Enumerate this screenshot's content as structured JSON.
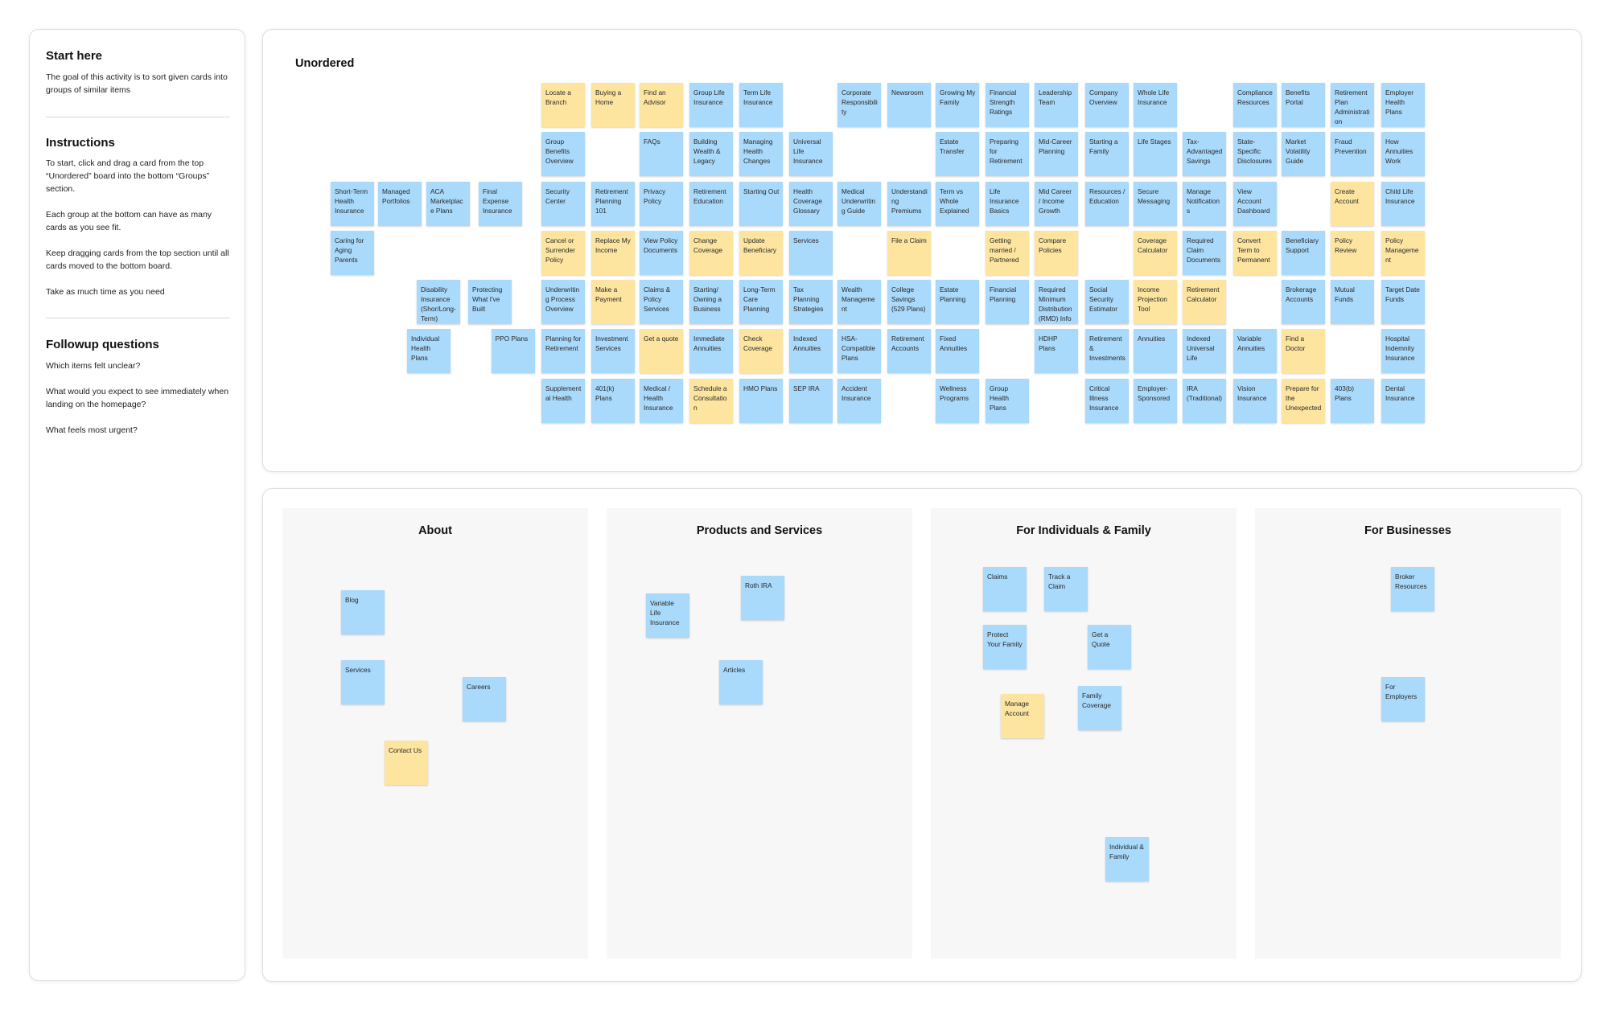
{
  "sidebar": {
    "start_title": "Start here",
    "start_text": "The goal of this activity is to sort given cards into groups of similar items",
    "instructions_title": "Instructions",
    "instructions": [
      "To start, click and drag a card from the top “Unordered” board into the bottom “Groups” section.",
      "Each group at the bottom can have as many cards as you see fit.",
      "Keep dragging cards from the top section until all cards moved to the bottom board.",
      "Take as much time as you need"
    ],
    "followup_title": "Followup questions",
    "followup": [
      "Which items felt unclear?",
      "What would you expect to see immediately when landing on the homepage?",
      "What feels most urgent?"
    ]
  },
  "unordered": {
    "title": "Unordered",
    "cards": [
      {
        "text": "Short-Term Health Insurance",
        "color": "blue"
      },
      {
        "text": "Managed Portfolios",
        "color": "blue"
      },
      {
        "text": "ACA Marketplace Plans",
        "color": "blue"
      },
      {
        "text": "Final Expense Insurance",
        "color": "blue"
      },
      {
        "text": "Caring for Aging Parents",
        "color": "blue"
      },
      {
        "text": "Disability Insurance (Shor/Long-Term)",
        "color": "blue"
      },
      {
        "text": "Protecting What I've Built",
        "color": "blue"
      },
      {
        "text": "Individual Health Plans",
        "color": "blue"
      },
      {
        "text": "PPO Plans",
        "color": "blue"
      },
      {
        "text": "Locate a Branch",
        "color": "yellow"
      },
      {
        "text": "Buying a Home",
        "color": "yellow"
      },
      {
        "text": "Find an Advisor",
        "color": "yellow"
      },
      {
        "text": "Group Life Insurance",
        "color": "blue"
      },
      {
        "text": "Term Life Insurance",
        "color": "blue"
      },
      {
        "text": "Corporate Responsibility",
        "color": "blue"
      },
      {
        "text": "Newsroom",
        "color": "blue"
      },
      {
        "text": "Growing My Family",
        "color": "blue"
      },
      {
        "text": "Financial Strength Ratings",
        "color": "blue"
      },
      {
        "text": "Leadership Team",
        "color": "blue"
      },
      {
        "text": "Company Overview",
        "color": "blue"
      },
      {
        "text": "Whole Life Insurance",
        "color": "blue"
      },
      {
        "text": "Compliance Resources",
        "color": "blue"
      },
      {
        "text": "Benefits Portal",
        "color": "blue"
      },
      {
        "text": "Retirement Plan Administration",
        "color": "blue"
      },
      {
        "text": "Employer Health Plans",
        "color": "blue"
      },
      {
        "text": "Group Benefits Overview",
        "color": "blue"
      },
      {
        "text": "FAQs",
        "color": "blue"
      },
      {
        "text": "Building Wealth & Legacy",
        "color": "blue"
      },
      {
        "text": "Managing Health Changes",
        "color": "blue"
      },
      {
        "text": "Universal Life Insurance",
        "color": "blue"
      },
      {
        "text": "Estate Transfer",
        "color": "blue"
      },
      {
        "text": "Preparing for Retirement",
        "color": "blue"
      },
      {
        "text": "Mid-Career Planning",
        "color": "blue"
      },
      {
        "text": "Starting a Family",
        "color": "blue"
      },
      {
        "text": "Life Stages",
        "color": "blue"
      },
      {
        "text": "Tax-Advantaged Savings",
        "color": "blue"
      },
      {
        "text": "State-Specific Disclosures",
        "color": "blue"
      },
      {
        "text": "Market Volatility Guide",
        "color": "blue"
      },
      {
        "text": "Fraud Prevention",
        "color": "blue"
      },
      {
        "text": "How Annuities Work",
        "color": "blue"
      },
      {
        "text": "Security Center",
        "color": "blue"
      },
      {
        "text": "Retirement Planning 101",
        "color": "blue"
      },
      {
        "text": "Privacy Policy",
        "color": "blue"
      },
      {
        "text": "Retirement Education",
        "color": "blue"
      },
      {
        "text": "Starting Out",
        "color": "blue"
      },
      {
        "text": "Health Coverage Glossary",
        "color": "blue"
      },
      {
        "text": "Medical Underwriting Guide",
        "color": "blue"
      },
      {
        "text": "Understanding Premiums",
        "color": "blue"
      },
      {
        "text": "Term vs Whole Explained",
        "color": "blue"
      },
      {
        "text": "Life Insurance Basics",
        "color": "blue"
      },
      {
        "text": "Mid Career / Income Growth",
        "color": "blue"
      },
      {
        "text": "Resources / Education",
        "color": "blue"
      },
      {
        "text": "Secure Messaging",
        "color": "blue"
      },
      {
        "text": "Manage Notifications",
        "color": "blue"
      },
      {
        "text": "View Account Dashboard",
        "color": "blue"
      },
      {
        "text": "Create Account",
        "color": "yellow"
      },
      {
        "text": "Child Life Insurance",
        "color": "blue"
      },
      {
        "text": "Cancel or Surrender Policy",
        "color": "yellow"
      },
      {
        "text": "Replace My Income",
        "color": "yellow"
      },
      {
        "text": "View Policy Documents",
        "color": "blue"
      },
      {
        "text": "Change Coverage",
        "color": "yellow"
      },
      {
        "text": "Update Beneficiary",
        "color": "yellow"
      },
      {
        "text": "Services",
        "color": "blue"
      },
      {
        "text": "File a Claim",
        "color": "yellow"
      },
      {
        "text": "Getting married / Partnered",
        "color": "yellow"
      },
      {
        "text": "Compare Policies",
        "color": "yellow"
      },
      {
        "text": "Coverage Calculator",
        "color": "yellow"
      },
      {
        "text": "Required Claim Documents",
        "color": "blue"
      },
      {
        "text": "Convert Term to Permanent",
        "color": "yellow"
      },
      {
        "text": "Beneficiary Support",
        "color": "blue"
      },
      {
        "text": "Policy Review",
        "color": "yellow"
      },
      {
        "text": "Policy Management",
        "color": "yellow"
      },
      {
        "text": "Underwriting Process Overview",
        "color": "blue"
      },
      {
        "text": "Make a Payment",
        "color": "yellow"
      },
      {
        "text": "Claims & Policy Services",
        "color": "blue"
      },
      {
        "text": "Starting/ Owning a Business",
        "color": "blue"
      },
      {
        "text": "Long-Term Care Planning",
        "color": "blue"
      },
      {
        "text": "Tax Planning Strategies",
        "color": "blue"
      },
      {
        "text": "Wealth Management",
        "color": "blue"
      },
      {
        "text": "College Savings (529 Plans)",
        "color": "blue"
      },
      {
        "text": "Estate Planning",
        "color": "blue"
      },
      {
        "text": "Financial Planning",
        "color": "blue"
      },
      {
        "text": "Required Minimum Distribution (RMD) Info",
        "color": "blue"
      },
      {
        "text": "Social Security Estimator",
        "color": "blue"
      },
      {
        "text": "Income Projection Tool",
        "color": "yellow"
      },
      {
        "text": "Retirement Calculator",
        "color": "yellow"
      },
      {
        "text": "Brokerage Accounts",
        "color": "blue"
      },
      {
        "text": "Mutual Funds",
        "color": "blue"
      },
      {
        "text": "Target Date Funds",
        "color": "blue"
      },
      {
        "text": "Planning for Retirement",
        "color": "blue"
      },
      {
        "text": "Investment Services",
        "color": "blue"
      },
      {
        "text": "Get a quote",
        "color": "yellow"
      },
      {
        "text": "Immediate Annuities",
        "color": "blue"
      },
      {
        "text": "Check Coverage",
        "color": "yellow"
      },
      {
        "text": "Indexed Annuities",
        "color": "blue"
      },
      {
        "text": "HSA-Compatible Plans",
        "color": "blue"
      },
      {
        "text": "Retirement Accounts",
        "color": "blue"
      },
      {
        "text": "Fixed Annuities",
        "color": "blue"
      },
      {
        "text": "HDHP Plans",
        "color": "blue"
      },
      {
        "text": "Retirement & Investments",
        "color": "blue"
      },
      {
        "text": "Annuities",
        "color": "blue"
      },
      {
        "text": "Indexed Universal Life",
        "color": "blue"
      },
      {
        "text": "Variable Annuities",
        "color": "blue"
      },
      {
        "text": "Find a Doctor",
        "color": "yellow"
      },
      {
        "text": "Hospital Indemnity Insurance",
        "color": "blue"
      },
      {
        "text": "Supplemental Health",
        "color": "blue"
      },
      {
        "text": "401(k) Plans",
        "color": "blue"
      },
      {
        "text": "Medical / Health Insurance",
        "color": "blue"
      },
      {
        "text": "Schedule a Consultation",
        "color": "yellow"
      },
      {
        "text": "HMO Plans",
        "color": "blue"
      },
      {
        "text": "SEP IRA",
        "color": "blue"
      },
      {
        "text": "Accident Insurance",
        "color": "blue"
      },
      {
        "text": "Wellness Programs",
        "color": "blue"
      },
      {
        "text": "Group Health Plans",
        "color": "blue"
      },
      {
        "text": "Critical Illness Insurance",
        "color": "blue"
      },
      {
        "text": "Employer-Sponsored",
        "color": "blue"
      },
      {
        "text": "IRA (Traditional)",
        "color": "blue"
      },
      {
        "text": "Vision Insurance",
        "color": "blue"
      },
      {
        "text": "Prepare for the Unexpected",
        "color": "yellow"
      },
      {
        "text": "403(b) Plans",
        "color": "blue"
      },
      {
        "text": "Dental Insurance",
        "color": "blue"
      }
    ]
  },
  "groups": [
    {
      "title": "About",
      "cards": [
        {
          "text": "Blog",
          "color": "blue"
        },
        {
          "text": "Services",
          "color": "blue"
        },
        {
          "text": "Careers",
          "color": "blue"
        },
        {
          "text": "Contact Us",
          "color": "yellow"
        }
      ]
    },
    {
      "title": "Products and Services",
      "cards": [
        {
          "text": "Variable Life Insurance",
          "color": "blue"
        },
        {
          "text": "Roth IRA",
          "color": "blue"
        },
        {
          "text": "Articles",
          "color": "blue"
        }
      ]
    },
    {
      "title": "For Individuals & Family",
      "cards": [
        {
          "text": "Claims",
          "color": "blue"
        },
        {
          "text": "Track a Claim",
          "color": "blue"
        },
        {
          "text": "Protect Your Family",
          "color": "blue"
        },
        {
          "text": "Get a Quote",
          "color": "blue"
        },
        {
          "text": "Manage Account",
          "color": "yellow"
        },
        {
          "text": "Family Coverage",
          "color": "blue"
        },
        {
          "text": "Individual & Family",
          "color": "blue"
        }
      ]
    },
    {
      "title": "For Businesses",
      "cards": [
        {
          "text": "Broker Resources",
          "color": "blue"
        },
        {
          "text": "For Employers",
          "color": "blue"
        }
      ]
    }
  ]
}
